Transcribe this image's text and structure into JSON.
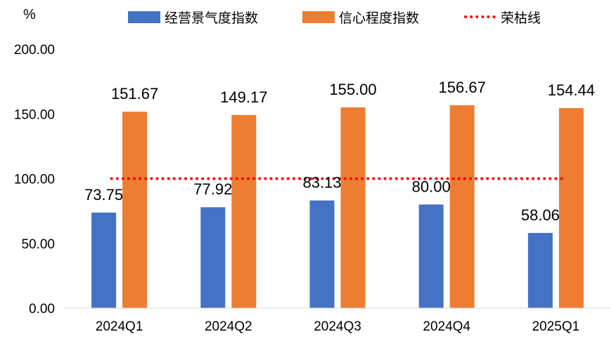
{
  "chart_data": {
    "type": "bar",
    "unit_label": "%",
    "categories": [
      "2024Q1",
      "2024Q2",
      "2024Q3",
      "2024Q4",
      "2025Q1"
    ],
    "series": [
      {
        "name": "经营景气度指数",
        "color": "#4472C4",
        "values": [
          73.75,
          77.92,
          83.13,
          80.0,
          58.06
        ],
        "labels": [
          "73.75",
          "77.92",
          "83.13",
          "80.00",
          "58.06"
        ]
      },
      {
        "name": "信心程度指数",
        "color": "#ED7D31",
        "values": [
          151.67,
          149.17,
          155.0,
          156.67,
          154.44
        ],
        "labels": [
          "151.67",
          "149.17",
          "155.00",
          "156.67",
          "154.44"
        ]
      }
    ],
    "reference_line": {
      "name": "荣枯线",
      "value": 100,
      "color": "#FF0000",
      "style": "dotted"
    },
    "ylim": [
      0,
      200
    ],
    "yticks": [
      0,
      50,
      100,
      150,
      200
    ],
    "ytick_labels": [
      "0.00",
      "50.00",
      "100.00",
      "150.00",
      "200.00"
    ],
    "legend_position": "top",
    "grid": false
  }
}
